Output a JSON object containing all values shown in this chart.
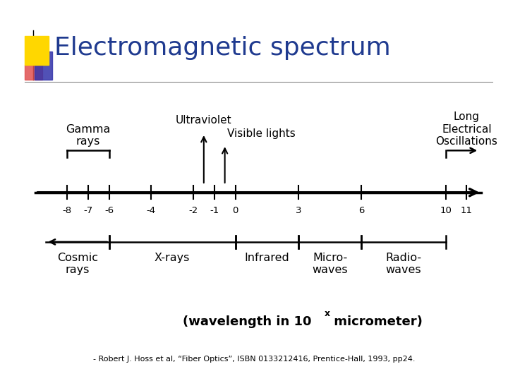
{
  "title": "Electromagnetic spectrum",
  "title_color": "#1F3A8F",
  "title_fontsize": 26,
  "background_color": "#FFFFFF",
  "axis_ticks": [
    -8,
    -7,
    -6,
    -4,
    -2,
    -1,
    0,
    3,
    6,
    10,
    11
  ],
  "axis_min": -9.5,
  "axis_max": 12.0,
  "decoration_colors": {
    "yellow_square": "#FFD700",
    "pink_shape": "#E05050",
    "blue_shape": "#3333AA"
  },
  "citation": "- Robert J. Hoss et al, “Fiber Optics”, ISBN 0133212416, Prentice-Hall, 1993, pp24."
}
